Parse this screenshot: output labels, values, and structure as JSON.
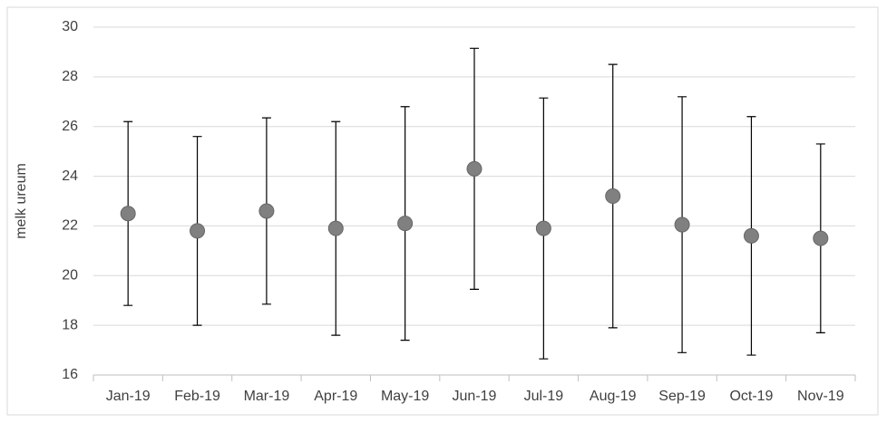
{
  "chart_data": {
    "type": "errorbar",
    "y_label": "melk ureum",
    "categories": [
      "Jan-19",
      "Feb-19",
      "Mar-19",
      "Apr-19",
      "May-19",
      "Jun-19",
      "Jul-19",
      "Aug-19",
      "Sep-19",
      "Oct-19",
      "Nov-19"
    ],
    "values": [
      22.5,
      21.8,
      22.6,
      21.9,
      22.1,
      24.3,
      21.9,
      23.2,
      22.05,
      21.6,
      21.5
    ],
    "errors": [
      3.7,
      3.8,
      3.75,
      4.3,
      4.7,
      4.85,
      5.25,
      5.3,
      5.15,
      4.8,
      3.8
    ],
    "color": "#808080",
    "ylim": [
      16,
      30
    ],
    "yticks": [
      16,
      18,
      20,
      22,
      24,
      26,
      28,
      30
    ],
    "grid": true
  }
}
